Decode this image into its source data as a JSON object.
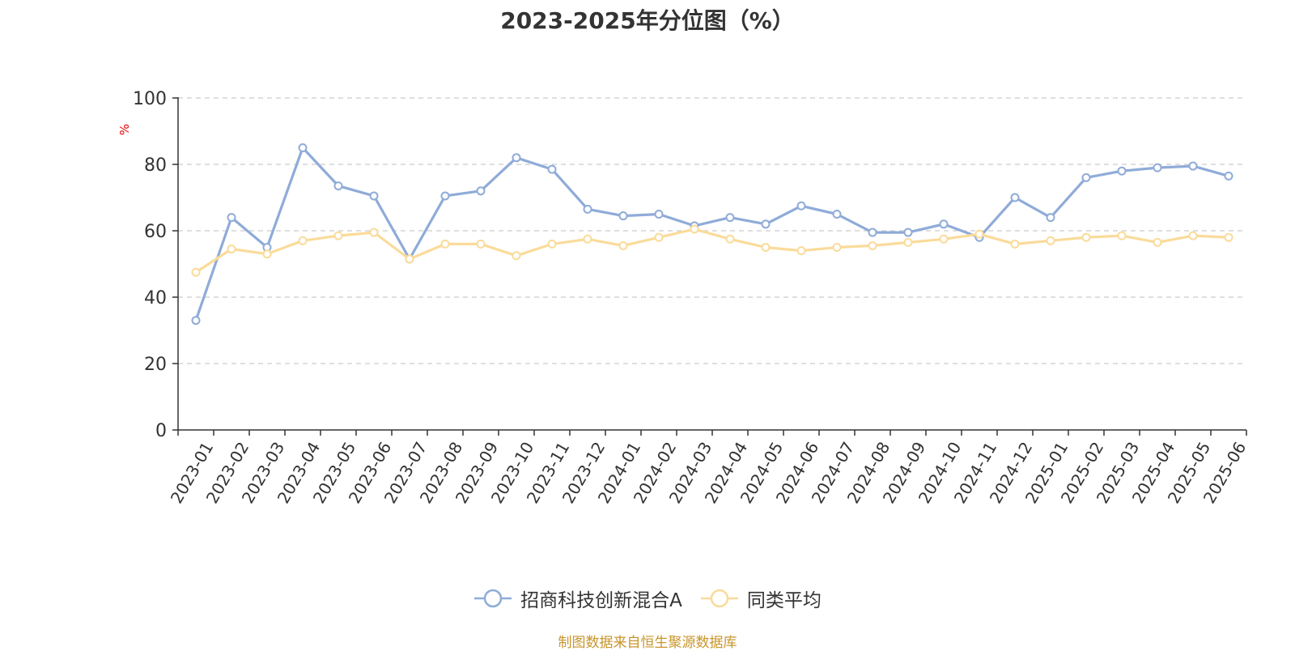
{
  "chart_data": {
    "type": "line",
    "title": "2023-2025年分位图（%）",
    "ylabel": "%",
    "xlabel": "",
    "ylim": [
      0,
      100
    ],
    "yticks": [
      0,
      20,
      40,
      60,
      80,
      100
    ],
    "grid": true,
    "legend_position": "bottom",
    "categories": [
      "2023-01",
      "2023-02",
      "2023-03",
      "2023-04",
      "2023-05",
      "2023-06",
      "2023-07",
      "2023-08",
      "2023-09",
      "2023-10",
      "2023-11",
      "2023-12",
      "2024-01",
      "2024-02",
      "2024-03",
      "2024-04",
      "2024-05",
      "2024-06",
      "2024-07",
      "2024-08",
      "2024-09",
      "2024-10",
      "2024-11",
      "2024-12",
      "2025-01",
      "2025-02",
      "2025-03",
      "2025-04",
      "2025-05",
      "2025-06"
    ],
    "series": [
      {
        "name": "招商科技创新混合A",
        "color": "#8fabd8",
        "values": [
          33,
          64,
          55,
          85,
          73.5,
          70.5,
          51.5,
          70.5,
          72,
          82,
          78.5,
          66.5,
          64.5,
          65,
          61.5,
          64,
          62,
          67.5,
          65,
          59.5,
          59.5,
          62,
          58,
          70,
          64,
          76,
          78,
          79,
          79.5,
          76.5
        ]
      },
      {
        "name": "同类平均",
        "color": "#fadb9a",
        "values": [
          47.5,
          54.5,
          53,
          57,
          58.5,
          59.5,
          51.5,
          56,
          56,
          52.5,
          56,
          57.5,
          55.5,
          58,
          60.5,
          57.5,
          55,
          54,
          55,
          55.5,
          56.5,
          57.5,
          59,
          56,
          57,
          58,
          58.5,
          56.5,
          58.5,
          58
        ]
      }
    ]
  },
  "source_note": "制图数据来自恒生聚源数据库"
}
